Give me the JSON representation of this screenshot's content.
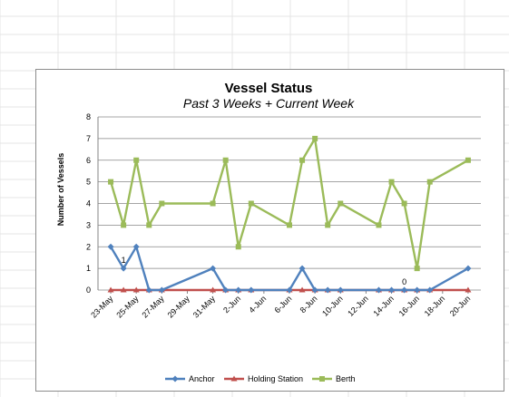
{
  "chart_data": {
    "type": "line",
    "title": "Vessel Status",
    "subtitle": "Past 3 Weeks + Current Week",
    "xlabel": "",
    "ylabel": "Number of Vessels",
    "ylim": [
      0,
      8
    ],
    "yticks": [
      "0",
      "1",
      "2",
      "3",
      "4",
      "5",
      "6",
      "7",
      "8"
    ],
    "x_range": [
      "2014-05-22",
      "2014-06-21"
    ],
    "xticks": [
      {
        "date": "2014-05-23",
        "label": "23-May"
      },
      {
        "date": "2014-05-25",
        "label": "25-May"
      },
      {
        "date": "2014-05-27",
        "label": "27-May"
      },
      {
        "date": "2014-05-29",
        "label": "29-May"
      },
      {
        "date": "2014-05-31",
        "label": "31-May"
      },
      {
        "date": "2014-06-02",
        "label": "2-Jun"
      },
      {
        "date": "2014-06-04",
        "label": "4-Jun"
      },
      {
        "date": "2014-06-06",
        "label": "6-Jun"
      },
      {
        "date": "2014-06-08",
        "label": "8-Jun"
      },
      {
        "date": "2014-06-10",
        "label": "10-Jun"
      },
      {
        "date": "2014-06-12",
        "label": "12-Jun"
      },
      {
        "date": "2014-06-14",
        "label": "14-Jun"
      },
      {
        "date": "2014-06-16",
        "label": "16-Jun"
      },
      {
        "date": "2014-06-18",
        "label": "18-Jun"
      },
      {
        "date": "2014-06-20",
        "label": "20-Jun"
      }
    ],
    "x": [
      "2014-05-23",
      "2014-05-24",
      "2014-05-25",
      "2014-05-26",
      "2014-05-27",
      "2014-05-31",
      "2014-06-01",
      "2014-06-02",
      "2014-06-03",
      "2014-06-06",
      "2014-06-07",
      "2014-06-08",
      "2014-06-09",
      "2014-06-10",
      "2014-06-13",
      "2014-06-14",
      "2014-06-15",
      "2014-06-16",
      "2014-06-17",
      "2014-06-20"
    ],
    "series": [
      {
        "name": "Anchor",
        "color": "#4f81bd",
        "marker": "diamond",
        "values": [
          2,
          1,
          2,
          0,
          0,
          1,
          0,
          0,
          0,
          0,
          1,
          0,
          0,
          0,
          0,
          0,
          0,
          0,
          0,
          1
        ]
      },
      {
        "name": "Holding Station",
        "color": "#c0504d",
        "marker": "triangle",
        "values": [
          0,
          0,
          0,
          0,
          0,
          0,
          0,
          0,
          0,
          0,
          0,
          0,
          0,
          0,
          0,
          0,
          0,
          0,
          0,
          0
        ]
      },
      {
        "name": "Berth",
        "color": "#9bbb59",
        "marker": "square",
        "values": [
          5,
          3,
          6,
          3,
          4,
          4,
          6,
          2,
          4,
          3,
          6,
          7,
          3,
          4,
          3,
          5,
          4,
          1,
          5,
          6
        ]
      }
    ],
    "data_labels": [
      {
        "x": "2014-05-24",
        "y": 1,
        "text": "1"
      },
      {
        "x": "2014-06-15",
        "y": 0,
        "text": "0"
      }
    ],
    "grid": true,
    "legend_position": "bottom"
  }
}
